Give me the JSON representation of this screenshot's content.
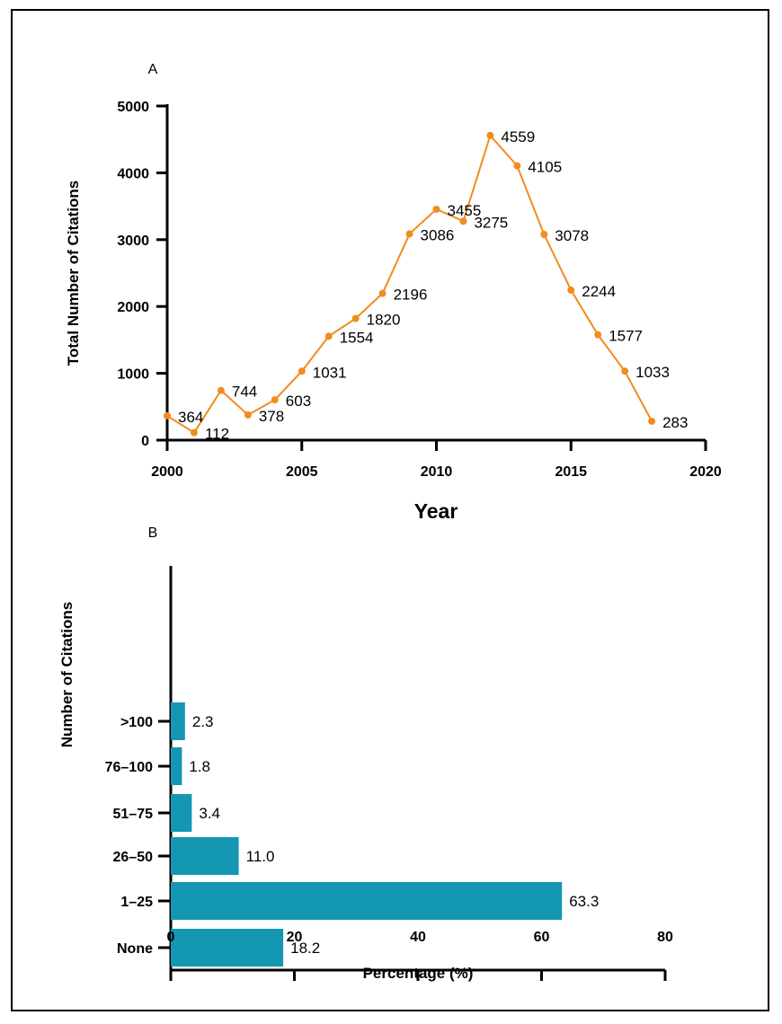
{
  "chart_data": [
    {
      "panel": "A",
      "type": "line",
      "xlabel": "Year",
      "ylabel": "Total Number of Citations",
      "xlim": [
        2000,
        2020
      ],
      "ylim": [
        0,
        5000
      ],
      "x_ticks": [
        2000,
        2005,
        2010,
        2015,
        2020
      ],
      "y_ticks": [
        0,
        1000,
        2000,
        3000,
        4000,
        5000
      ],
      "grid": false,
      "color": "#F28C1E",
      "series": [
        {
          "x": [
            2000,
            2001,
            2002,
            2003,
            2004,
            2005,
            2006,
            2007,
            2008,
            2009,
            2010,
            2011,
            2012,
            2013,
            2014,
            2015,
            2016,
            2017,
            2018
          ],
          "values": [
            364,
            112,
            744,
            378,
            603,
            1031,
            1554,
            1820,
            2196,
            3086,
            3455,
            3275,
            4559,
            4105,
            3078,
            2244,
            1577,
            1033,
            283
          ]
        }
      ]
    },
    {
      "panel": "B",
      "type": "bar",
      "orientation": "horizontal",
      "xlabel": "Percentage (%)",
      "ylabel": "Number of Citations",
      "xlim": [
        0,
        80
      ],
      "x_ticks": [
        0,
        20,
        40,
        60,
        80
      ],
      "grid": false,
      "color": "#1497B3",
      "categories": [
        "None",
        "1–25",
        "26–50",
        "51–75",
        "76–100",
        ">100"
      ],
      "values": [
        18.2,
        63.3,
        11.0,
        3.4,
        1.8,
        2.3
      ],
      "value_labels": [
        "18.2",
        "63.3",
        "11.0",
        "3.4",
        "1.8",
        "2.3"
      ]
    }
  ]
}
